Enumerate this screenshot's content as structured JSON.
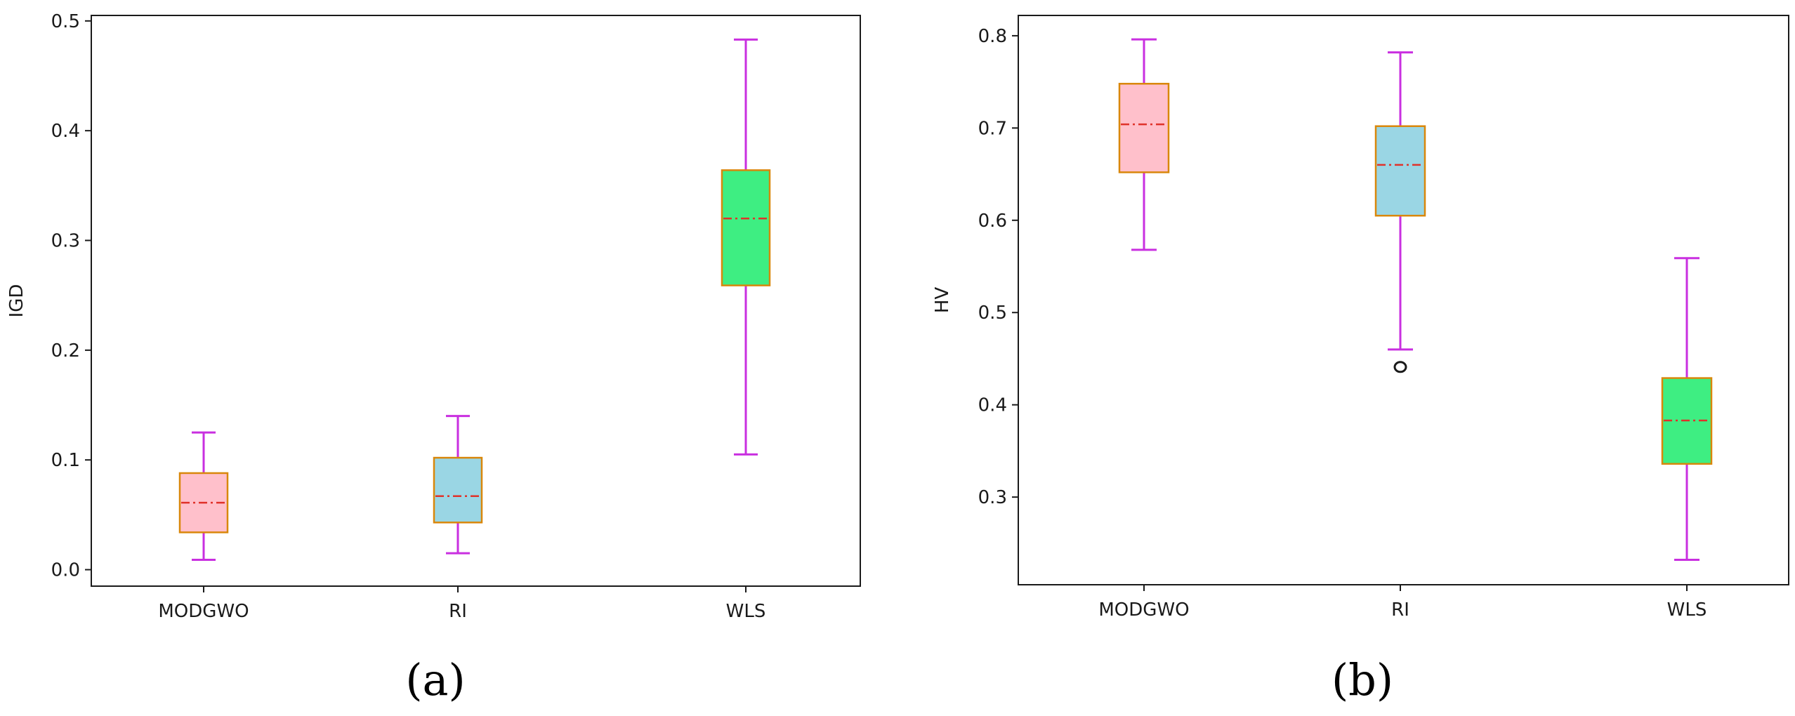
{
  "chart_data": [
    {
      "type": "box",
      "panel_label": "(a)",
      "ylabel": "IGD",
      "ylim": [
        -0.015,
        0.505
      ],
      "yticks": [
        0.0,
        0.1,
        0.2,
        0.3,
        0.4,
        0.5
      ],
      "ytick_labels": [
        "0.0",
        "0.1",
        "0.2",
        "0.3",
        "0.4",
        "0.5"
      ],
      "categories": [
        "MODGWO",
        "RI",
        "WLS"
      ],
      "boxes": [
        {
          "category": "MODGWO",
          "whisker_low": 0.009,
          "q1": 0.034,
          "median": 0.061,
          "q3": 0.088,
          "whisker_high": 0.125,
          "outliers": []
        },
        {
          "category": "RI",
          "whisker_low": 0.015,
          "q1": 0.043,
          "median": 0.067,
          "q3": 0.102,
          "whisker_high": 0.14,
          "outliers": []
        },
        {
          "category": "WLS",
          "whisker_low": 0.105,
          "q1": 0.259,
          "median": 0.32,
          "q3": 0.364,
          "whisker_high": 0.483,
          "outliers": []
        }
      ],
      "grid": false
    },
    {
      "type": "box",
      "panel_label": "(b)",
      "ylabel": "HV",
      "ylim": [
        0.205,
        0.822
      ],
      "yticks": [
        0.3,
        0.4,
        0.5,
        0.6,
        0.7,
        0.8
      ],
      "ytick_labels": [
        "0.3",
        "0.4",
        "0.5",
        "0.6",
        "0.7",
        "0.8"
      ],
      "categories": [
        "MODGWO",
        "RI",
        "WLS"
      ],
      "boxes": [
        {
          "category": "MODGWO",
          "whisker_low": 0.568,
          "q1": 0.652,
          "median": 0.704,
          "q3": 0.748,
          "whisker_high": 0.796,
          "outliers": []
        },
        {
          "category": "RI",
          "whisker_low": 0.46,
          "q1": 0.605,
          "median": 0.66,
          "q3": 0.702,
          "whisker_high": 0.782,
          "outliers": [
            0.441
          ]
        },
        {
          "category": "WLS",
          "whisker_low": 0.232,
          "q1": 0.336,
          "median": 0.383,
          "q3": 0.429,
          "whisker_high": 0.559,
          "outliers": []
        }
      ],
      "grid": false
    }
  ],
  "colors": {
    "box_fills": [
      "#ffc0cb",
      "#9ad6e4",
      "#3eee82"
    ],
    "box_edge": "#d9870b",
    "whisker": "#c92fe0",
    "median": "#e0322a",
    "outlier": "#1a1a1a",
    "axes": "#1a1a1a"
  }
}
